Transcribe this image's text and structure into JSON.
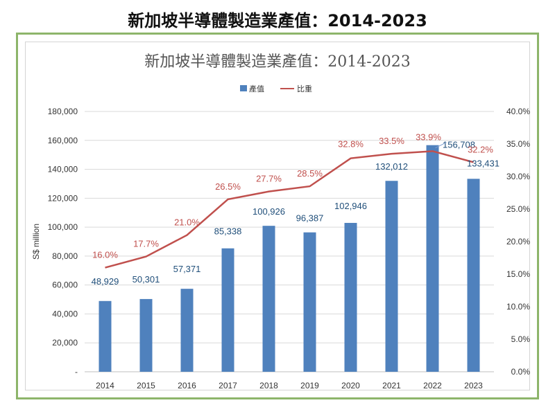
{
  "page_title": "新加坡半導體製造業產值：2014-2023",
  "chart_data": {
    "type": "bar",
    "title": "新加坡半導體製造業產值：2014-2023",
    "categories": [
      "2014",
      "2015",
      "2016",
      "2017",
      "2018",
      "2019",
      "2020",
      "2021",
      "2022",
      "2023"
    ],
    "series": [
      {
        "name": "產值",
        "type": "bar",
        "axis": "left",
        "color": "#4f81bd",
        "values": [
          48929,
          50301,
          57371,
          85338,
          100926,
          96387,
          102946,
          132012,
          156708,
          133431
        ],
        "labels": [
          "48,929",
          "50,301",
          "57,371",
          "85,338",
          "100,926",
          "96,387",
          "102,946",
          "132,012",
          "156,708",
          "133,431"
        ]
      },
      {
        "name": "比重",
        "type": "line",
        "axis": "right",
        "color": "#c0504d",
        "values": [
          16.0,
          17.7,
          21.0,
          26.5,
          27.7,
          28.5,
          32.8,
          33.5,
          33.9,
          32.2
        ],
        "labels": [
          "16.0%",
          "17.7%",
          "21.0%",
          "26.5%",
          "27.7%",
          "28.5%",
          "32.8%",
          "33.5%",
          "33.9%",
          "32.2%"
        ]
      }
    ],
    "ylabel": "S$ million",
    "ylim": [
      0,
      180000
    ],
    "y2lim": [
      0,
      40
    ],
    "y_ticks": [
      "-",
      "20,000",
      "40,000",
      "60,000",
      "80,000",
      "100,000",
      "120,000",
      "140,000",
      "160,000",
      "180,000"
    ],
    "y2_ticks": [
      "0.0%",
      "5.0%",
      "10.0%",
      "15.0%",
      "20.0%",
      "25.0%",
      "30.0%",
      "35.0%",
      "40.0%"
    ],
    "legend_position": "top-center",
    "grid": true
  }
}
